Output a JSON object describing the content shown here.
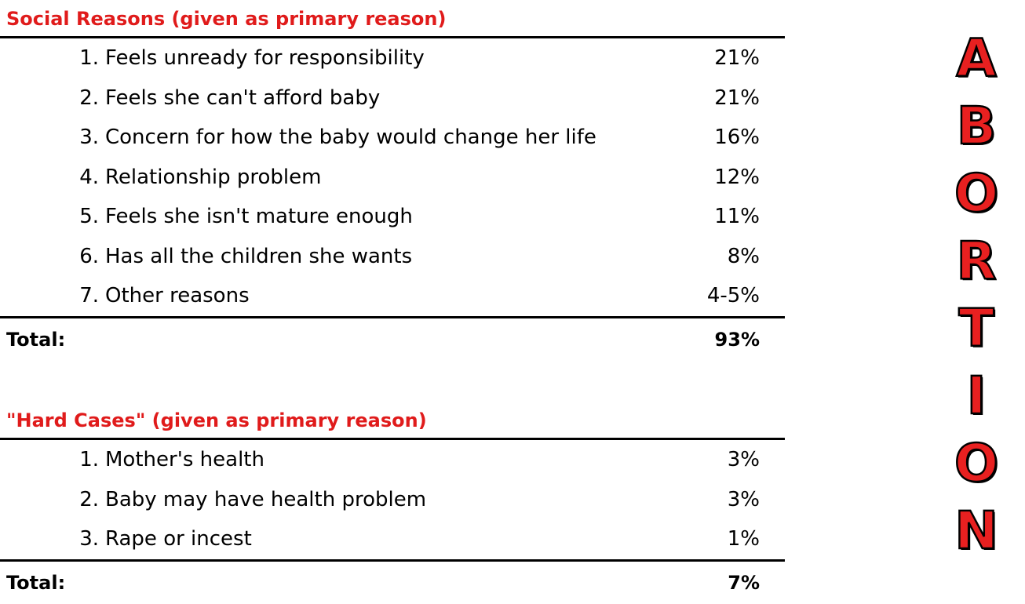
{
  "social": {
    "title": "Social Reasons (given as primary reason)",
    "items": [
      {
        "num": "1.",
        "label": "Feels unready for responsibility",
        "pct": "21%"
      },
      {
        "num": "2.",
        "label": "Feels she can't afford baby",
        "pct": "21%"
      },
      {
        "num": "3.",
        "label": "Concern for how the baby would change her life",
        "pct": "16%"
      },
      {
        "num": "4.",
        "label": "Relationship problem",
        "pct": "12%"
      },
      {
        "num": "5.",
        "label": "Feels she isn't mature enough",
        "pct": "11%"
      },
      {
        "num": "6.",
        "label": "Has all the children she wants",
        "pct": "8%"
      },
      {
        "num": "7.",
        "label": "Other reasons",
        "pct": "4-5%"
      }
    ],
    "total_label": "Total:",
    "total_value": "93%"
  },
  "hard": {
    "title": "\"Hard Cases\" (given as primary reason)",
    "items": [
      {
        "num": "1.",
        "label": "Mother's health",
        "pct": "3%"
      },
      {
        "num": "2.",
        "label": "Baby may have health problem",
        "pct": "3%"
      },
      {
        "num": "3.",
        "label": "Rape or incest",
        "pct": "1%"
      }
    ],
    "total_label": "Total:",
    "total_value": "7%"
  },
  "side_title": {
    "letters": [
      "A",
      "B",
      "O",
      "R",
      "T",
      "I",
      "O",
      "N"
    ]
  },
  "colors": {
    "heading": "#e01b1b",
    "side_letter_fill": "#e82020",
    "side_letter_outline": "#000000"
  }
}
